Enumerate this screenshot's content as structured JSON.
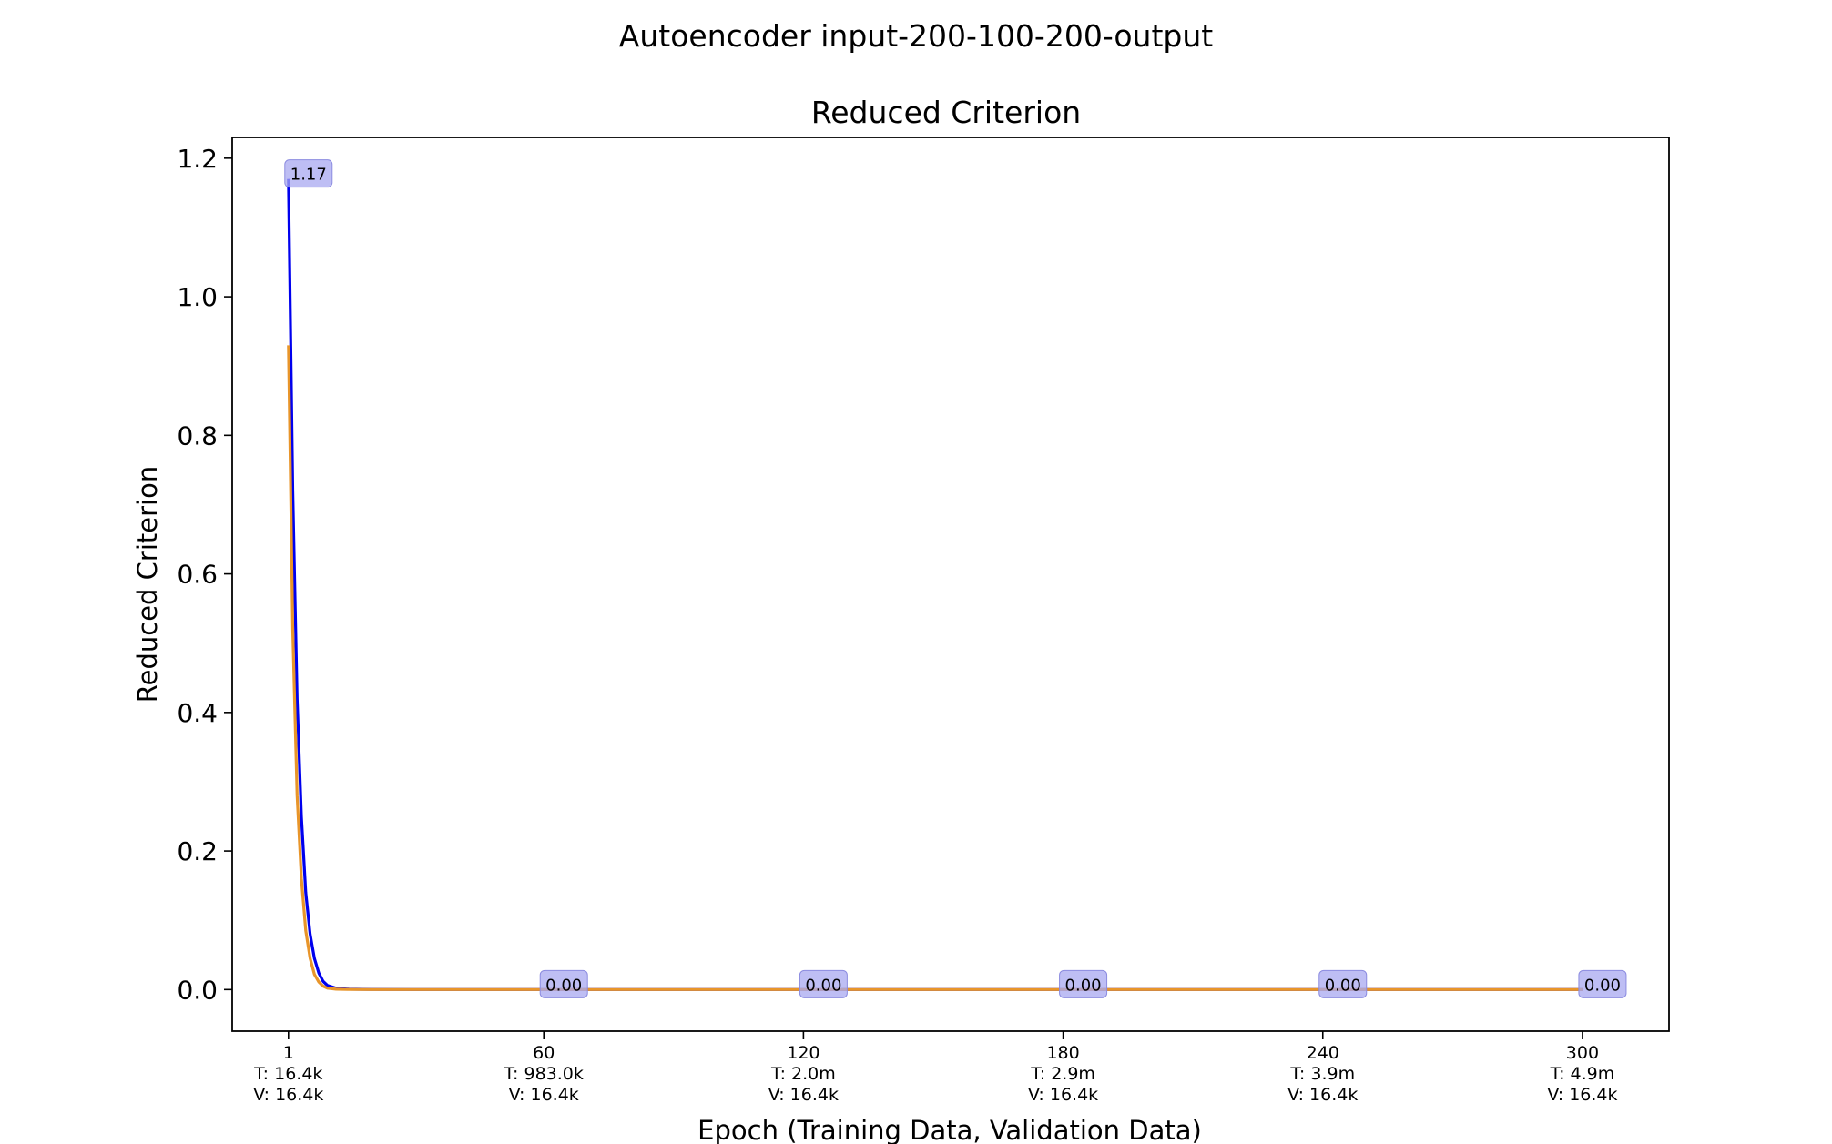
{
  "figure": {
    "suptitle": "Autoencoder input-200-100-200-output"
  },
  "chart_data": {
    "type": "line",
    "title": "Reduced Criterion",
    "xlabel": "Epoch (Training Data, Validation Data)",
    "ylabel": "Reduced Criterion",
    "xlim": [
      -12,
      320
    ],
    "ylim": [
      -0.06,
      1.23
    ],
    "yticks": [
      0.0,
      0.2,
      0.4,
      0.6,
      0.8,
      1.0,
      1.2
    ],
    "ytick_labels": [
      "0.0",
      "0.2",
      "0.4",
      "0.6",
      "0.8",
      "1.0",
      "1.2"
    ],
    "xticks": [
      {
        "x": 1,
        "lines": [
          "1",
          "T: 16.4k",
          "V: 16.4k"
        ]
      },
      {
        "x": 60,
        "lines": [
          "60",
          "T: 983.0k",
          "V: 16.4k"
        ]
      },
      {
        "x": 120,
        "lines": [
          "120",
          "T: 2.0m",
          "V: 16.4k"
        ]
      },
      {
        "x": 180,
        "lines": [
          "180",
          "T: 2.9m",
          "V: 16.4k"
        ]
      },
      {
        "x": 240,
        "lines": [
          "240",
          "T: 3.9m",
          "V: 16.4k"
        ]
      },
      {
        "x": 300,
        "lines": [
          "300",
          "T: 4.9m",
          "V: 16.4k"
        ]
      }
    ],
    "series": [
      {
        "color": "#0000ee",
        "x": [
          1,
          2,
          3,
          4,
          5,
          6,
          7,
          8,
          9,
          10,
          12,
          15,
          20,
          30,
          60,
          120,
          180,
          240,
          300
        ],
        "y": [
          1.17,
          0.72,
          0.42,
          0.25,
          0.14,
          0.08,
          0.045,
          0.024,
          0.012,
          0.006,
          0.002,
          0.0005,
          0.0001,
          0.0,
          0.0,
          0.0,
          0.0,
          0.0,
          0.0
        ]
      },
      {
        "color": "#e8952a",
        "x": [
          1,
          2,
          3,
          4,
          5,
          6,
          7,
          8,
          9,
          10,
          12,
          15,
          20,
          30,
          60,
          120,
          180,
          240,
          300
        ],
        "y": [
          0.93,
          0.52,
          0.28,
          0.16,
          0.085,
          0.045,
          0.022,
          0.011,
          0.005,
          0.002,
          0.0006,
          0.0001,
          0.0,
          0.0,
          0.0,
          0.0,
          0.0,
          0.0,
          0.0
        ]
      }
    ],
    "annotations": [
      {
        "x": 1,
        "y": 1.17,
        "text": "1.17"
      },
      {
        "x": 60,
        "y": 0.0,
        "text": "0.00"
      },
      {
        "x": 120,
        "y": 0.0,
        "text": "0.00"
      },
      {
        "x": 180,
        "y": 0.0,
        "text": "0.00"
      },
      {
        "x": 240,
        "y": 0.0,
        "text": "0.00"
      },
      {
        "x": 300,
        "y": 0.0,
        "text": "0.00"
      }
    ],
    "annotation_box_color": "#a8a8f0",
    "grid": false,
    "legend": "none"
  }
}
